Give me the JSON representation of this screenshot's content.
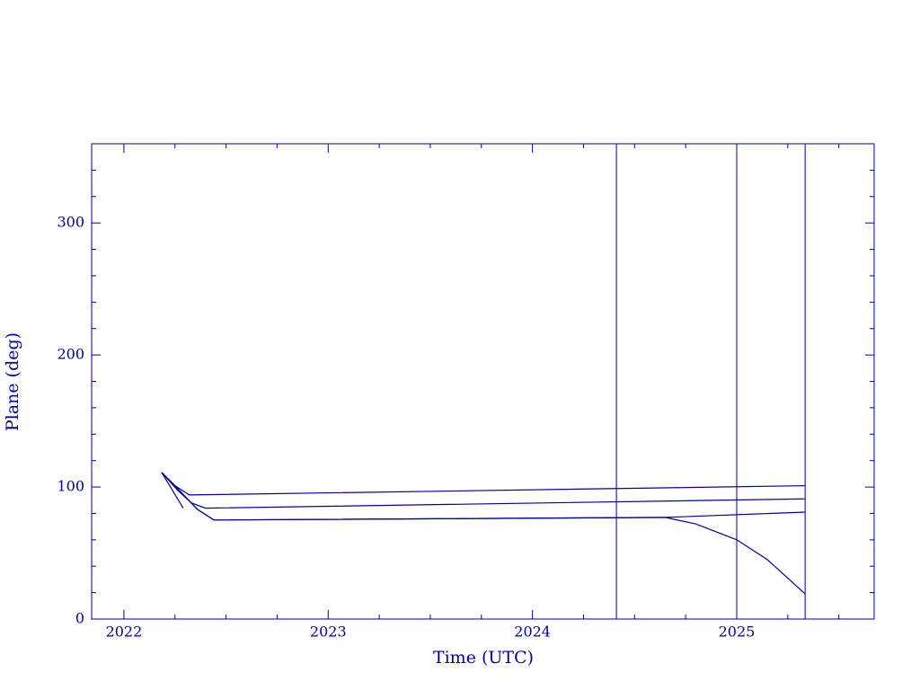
{
  "chart_data": {
    "type": "line",
    "xlabel": "Time (UTC)",
    "ylabel": "Plane (deg)",
    "color": "#0000a0",
    "xlim": [
      2021.842,
      2025.673
    ],
    "ylim": [
      0,
      360
    ],
    "xticks": [
      2022,
      2023,
      2024,
      2025
    ],
    "yticks": [
      0,
      100,
      200,
      300
    ],
    "xticks_minor": [
      2022.25,
      2022.5,
      2022.75,
      2023.25,
      2023.5,
      2023.75,
      2024.25,
      2024.5,
      2024.75,
      2025.25,
      2025.5
    ],
    "yticks_minor": [
      20,
      40,
      60,
      80,
      120,
      140,
      160,
      180,
      220,
      240,
      260,
      280,
      320,
      340
    ],
    "vlines": [
      2024.411,
      2025.0,
      2025.335
    ],
    "series": [
      {
        "x": [
          2022.185,
          2022.25,
          2022.32,
          2025.335
        ],
        "values": [
          111,
          101,
          94,
          101
        ]
      },
      {
        "x": [
          2022.185,
          2022.26,
          2022.33,
          2022.4,
          2025.335
        ],
        "values": [
          111,
          98,
          88,
          84,
          91
        ]
      },
      {
        "x": [
          2022.185,
          2022.28,
          2022.36,
          2022.44,
          2024.65,
          2025.335
        ],
        "values": [
          111,
          96,
          83,
          75,
          77,
          81
        ]
      },
      {
        "x": [
          2022.185,
          2022.28,
          2022.36,
          2022.44,
          2024.65,
          2024.8,
          2025.0,
          2025.15,
          2025.335
        ],
        "values": [
          111,
          96,
          83,
          75,
          77,
          72,
          60,
          45,
          19
        ]
      },
      {
        "x": [
          2022.185,
          2022.29
        ],
        "values": [
          111,
          84
        ]
      }
    ]
  }
}
